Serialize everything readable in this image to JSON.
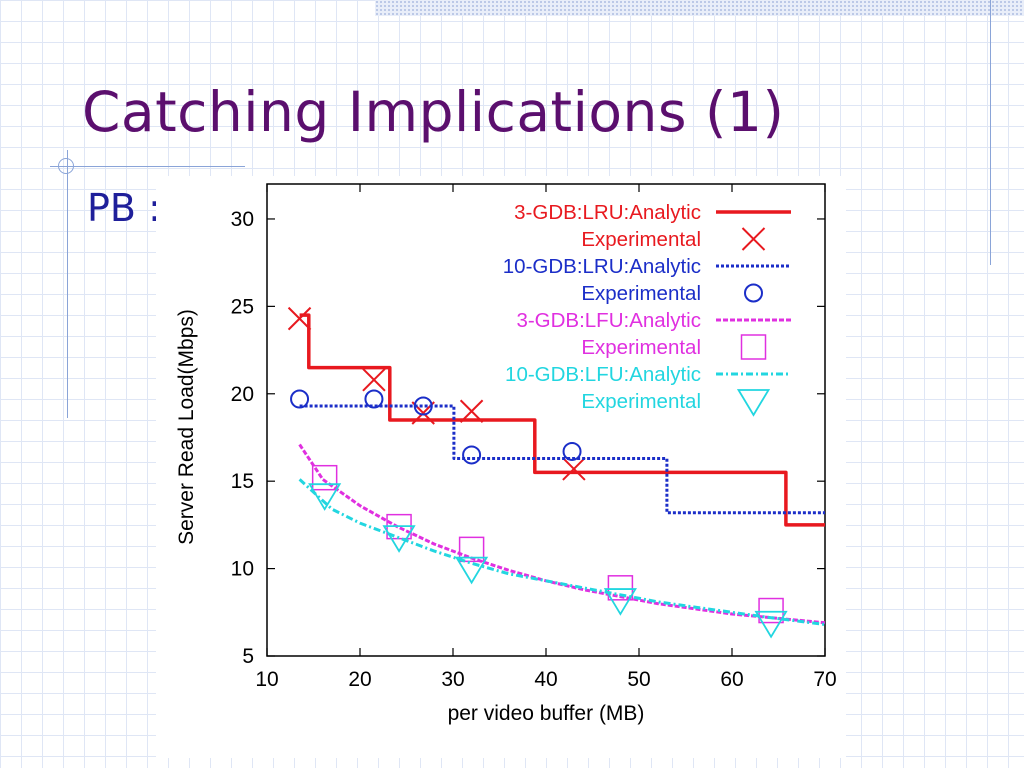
{
  "slide": {
    "title": "Catching Implications (1)",
    "bullet": "PB :"
  },
  "chart_data": {
    "type": "line",
    "xlabel": "per video buffer (MB)",
    "ylabel": "Server Read Load(Mbps)",
    "xlim": [
      10,
      70
    ],
    "ylim": [
      5,
      32
    ],
    "xticks": [
      "10",
      "20",
      "30",
      "40",
      "50",
      "60",
      "70"
    ],
    "yticks": [
      "5",
      "10",
      "15",
      "20",
      "25",
      "30"
    ],
    "legend_position": "top-right",
    "series": [
      {
        "name": "3-GDB:LRU:Analytic",
        "color": "#e8191f",
        "style": "solid",
        "points": [
          [
            13.5,
            24.5
          ],
          [
            14.5,
            24.5
          ],
          [
            14.5,
            21.5
          ],
          [
            23.2,
            21.5
          ],
          [
            23.2,
            18.5
          ],
          [
            38.8,
            18.5
          ],
          [
            38.8,
            15.5
          ],
          [
            65.8,
            15.5
          ],
          [
            65.8,
            12.5
          ],
          [
            70,
            12.5
          ]
        ]
      },
      {
        "name": "Experimental",
        "color": "#e8191f",
        "marker": "x",
        "points": [
          [
            13.5,
            24.3
          ],
          [
            21.5,
            20.8
          ],
          [
            26.8,
            18.9
          ],
          [
            32,
            19.0
          ],
          [
            43,
            15.7
          ]
        ]
      },
      {
        "name": "10-GDB:LRU:Analytic",
        "color": "#1b2ec8",
        "style": "dotted",
        "points": [
          [
            13.5,
            19.3
          ],
          [
            30.1,
            19.3
          ],
          [
            30.1,
            16.3
          ],
          [
            53,
            16.3
          ],
          [
            53,
            13.2
          ],
          [
            70,
            13.2
          ]
        ]
      },
      {
        "name": "Experimental",
        "color": "#1b2ec8",
        "marker": "circle",
        "points": [
          [
            13.5,
            19.7
          ],
          [
            21.5,
            19.7
          ],
          [
            26.8,
            19.3
          ],
          [
            32,
            16.5
          ],
          [
            42.8,
            16.7
          ]
        ]
      },
      {
        "name": "3-GDB:LFU:Analytic",
        "color": "#e030e0",
        "style": "dashed",
        "points": [
          [
            13.5,
            17.1
          ],
          [
            16,
            15.1
          ],
          [
            20,
            13.6
          ],
          [
            24,
            12.4
          ],
          [
            28,
            11.4
          ],
          [
            32,
            10.6
          ],
          [
            36,
            9.9
          ],
          [
            40,
            9.3
          ],
          [
            44,
            8.8
          ],
          [
            48,
            8.4
          ],
          [
            52,
            8.0
          ],
          [
            56,
            7.7
          ],
          [
            60,
            7.4
          ],
          [
            64,
            7.2
          ],
          [
            70,
            6.9
          ]
        ]
      },
      {
        "name": "Experimental",
        "color": "#e030e0",
        "marker": "square",
        "points": [
          [
            16.2,
            15.2
          ],
          [
            24.2,
            12.4
          ],
          [
            32,
            11.1
          ],
          [
            48,
            8.9
          ],
          [
            64.2,
            7.6
          ]
        ]
      },
      {
        "name": "10-GDB:LFU:Analytic",
        "color": "#22d6e0",
        "style": "dashdot",
        "points": [
          [
            13.5,
            15.1
          ],
          [
            17,
            13.4
          ],
          [
            20,
            12.6
          ],
          [
            24,
            11.8
          ],
          [
            28,
            11.0
          ],
          [
            32,
            10.3
          ],
          [
            36,
            9.7
          ],
          [
            40,
            9.3
          ],
          [
            44,
            8.9
          ],
          [
            48,
            8.5
          ],
          [
            52,
            8.1
          ],
          [
            56,
            7.8
          ],
          [
            60,
            7.5
          ],
          [
            64,
            7.2
          ],
          [
            70,
            6.8
          ]
        ]
      },
      {
        "name": "Experimental",
        "color": "#22d6e0",
        "marker": "triangle-down",
        "points": [
          [
            16.2,
            14.2
          ],
          [
            24.2,
            11.8
          ],
          [
            32,
            10.0
          ],
          [
            48,
            8.2
          ],
          [
            64.2,
            6.9
          ]
        ]
      }
    ]
  }
}
